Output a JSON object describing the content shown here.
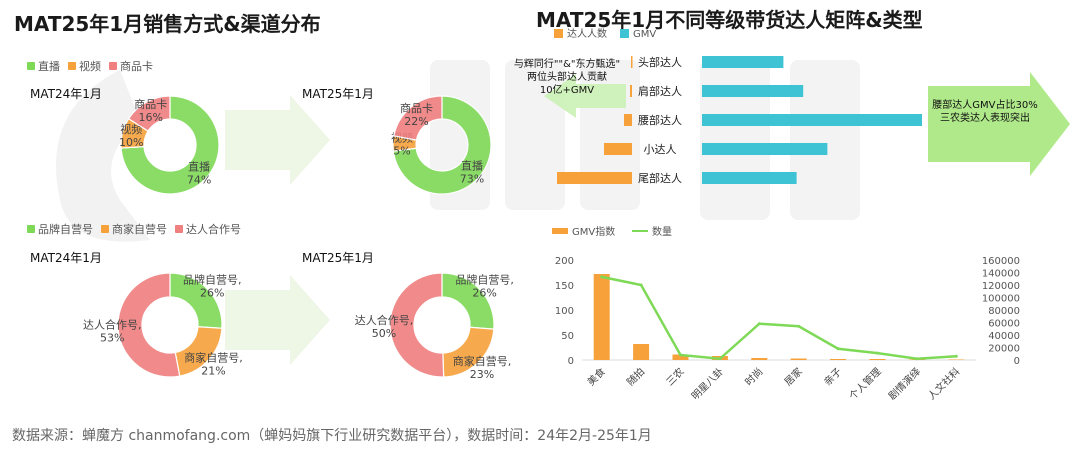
{
  "left_title": "MAT25年1月销售方式&渠道分布",
  "right_title": "MAT25年1月不同等级带货达人矩阵&类型",
  "footer": "数据来源：蝉魔方 chanmofang.com（蝉妈妈旗下行业研究数据平台），数据时间：24年2月-25年1月",
  "legend_sales": [
    {
      "label": "直播",
      "color": "#7ed957"
    },
    {
      "label": "视频",
      "color": "#f6a13a"
    },
    {
      "label": "商品卡",
      "color": "#f07f7f"
    }
  ],
  "legend_channel": [
    {
      "label": "品牌自营号",
      "color": "#7ed957"
    },
    {
      "label": "商家自营号",
      "color": "#f6a13a"
    },
    {
      "label": "达人合作号",
      "color": "#f07f7f"
    }
  ],
  "periods": {
    "p1": "MAT24年1月",
    "p2": "MAT25年1月",
    "p3": "MAT24年1月",
    "p4": "MAT25年1月"
  },
  "callout_left": [
    "与辉同行\"\"&\"东方甄选\"",
    "两位头部达人贡献",
    "10亿+GMV"
  ],
  "callout_right": [
    "腰部达人GMV占比30%",
    "三农类达人表现突出"
  ],
  "chart_data": [
    {
      "type": "pie",
      "title": "MAT24年1月",
      "labels": [
        "直播",
        "视频",
        "商品卡"
      ],
      "values": [
        74,
        10,
        16
      ],
      "value_labels": [
        "74%",
        "10%",
        "16%"
      ],
      "colors": [
        "#7ed957",
        "#f6a13a",
        "#f07f7f"
      ]
    },
    {
      "type": "pie",
      "title": "MAT25年1月",
      "labels": [
        "直播",
        "视频",
        "商品卡"
      ],
      "values": [
        73,
        5,
        22
      ],
      "value_labels": [
        "73%",
        "5%",
        "22%"
      ],
      "colors": [
        "#7ed957",
        "#f6a13a",
        "#f07f7f"
      ]
    },
    {
      "type": "pie",
      "title": "MAT24年1月",
      "labels": [
        "品牌自营号",
        "商家自营号",
        "达人合作号"
      ],
      "display_labels": [
        "品牌自营号,",
        "商家自营号,",
        "达人合作号,"
      ],
      "values": [
        26,
        21,
        53
      ],
      "value_labels": [
        "26%",
        "21%",
        "53%"
      ],
      "colors": [
        "#7ed957",
        "#f6a13a",
        "#f07f7f"
      ]
    },
    {
      "type": "pie",
      "title": "MAT25年1月",
      "labels": [
        "品牌自营号",
        "商家自营号",
        "达人合作号"
      ],
      "display_labels": [
        "品牌自营号,",
        "商家自营号,",
        "达人合作号,"
      ],
      "values": [
        26,
        23,
        50
      ],
      "value_labels": [
        "26%",
        "23%",
        "50%"
      ],
      "colors": [
        "#7ed957",
        "#f6a13a",
        "#f07f7f"
      ]
    },
    {
      "type": "bar",
      "orientation": "horizontal-butterfly",
      "categories": [
        "头部达人",
        "肩部达人",
        "腰部达人",
        "小达人",
        "尾部达人"
      ],
      "series": [
        {
          "name": "达人人数",
          "color": "#f6a13a",
          "values": [
            1,
            2,
            8,
            28,
            75
          ]
        },
        {
          "name": "GMV",
          "color": "#3ec3d5",
          "values": [
            37,
            46,
            100,
            57,
            43
          ]
        }
      ]
    },
    {
      "type": "bar",
      "combo": "bar+line",
      "categories": [
        "美食",
        "随拍",
        "三农",
        "明星八卦",
        "时尚",
        "居家",
        "亲子",
        "个人管理",
        "剧情演绎",
        "人文社科"
      ],
      "series": [
        {
          "name": "GMV指数",
          "color": "#f6a13a",
          "axis": "left",
          "values": [
            172,
            32,
            11,
            8,
            4,
            3,
            2,
            2,
            1,
            1
          ]
        },
        {
          "name": "数量",
          "color": "#7ed957",
          "axis": "right",
          "type": "line",
          "values": [
            133000,
            120000,
            8000,
            2000,
            58000,
            54000,
            18000,
            11000,
            2000,
            6000
          ]
        }
      ],
      "ylim_left": [
        0,
        200
      ],
      "yticks_left": [
        "0",
        "50",
        "100",
        "150",
        "200"
      ],
      "ylim_right": [
        0,
        160000
      ],
      "yticks_right": [
        "0",
        "20000",
        "40000",
        "60000",
        "80000",
        "100000",
        "120000",
        "140000",
        "160000"
      ]
    }
  ]
}
